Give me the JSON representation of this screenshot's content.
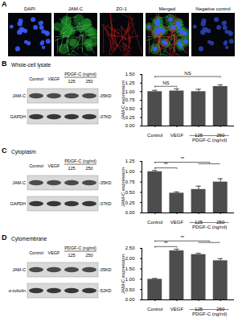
{
  "panel_a": {
    "label": "A",
    "images": [
      "DAPI",
      "JAM-C",
      "ZO-1",
      "Merged",
      "Negative control"
    ]
  },
  "chart_data": [
    {
      "type": "bar",
      "panel": "B",
      "title": "Whole-cell lysate",
      "categories": [
        "Control",
        "VEGF",
        "125",
        "250"
      ],
      "group_label": "PDGF-C (ng/ml)",
      "y_label": "JAM-C expression",
      "values": [
        1.0,
        1.02,
        1.0,
        1.15
      ],
      "errors": [
        0.04,
        0.06,
        0.07,
        0.05
      ],
      "color": "#4d4d4d",
      "ylim": [
        0,
        1.5
      ],
      "yticks": [
        {
          "value": 0,
          "label": "0.00"
        },
        {
          "value": 0.25,
          "label": "0.25"
        },
        {
          "value": 0.5,
          "label": "0.50"
        },
        {
          "value": 0.75,
          "label": "0.75"
        },
        {
          "value": 1,
          "label": "1.00"
        },
        {
          "value": 1.25,
          "label": "1.25"
        },
        {
          "value": 1.5,
          "label": "1.50"
        }
      ],
      "blot": [
        {
          "protein": "JAM-C",
          "size": "-35KD"
        },
        {
          "protein": "GAPDH",
          "size": "-37KD"
        }
      ],
      "annotations": [
        {
          "from": 0,
          "to": 1,
          "text": "NS"
        },
        {
          "from": 0,
          "to": 3,
          "text": "NS"
        }
      ]
    },
    {
      "type": "bar",
      "panel": "C",
      "title": "Cytoplasm",
      "categories": [
        "Control",
        "VEGF",
        "125",
        "250"
      ],
      "group_label": "PDGF-C (ng/ml)",
      "y_label": "JAM-C expression",
      "values": [
        1.0,
        0.48,
        0.57,
        0.75
      ],
      "errors": [
        0.03,
        0.03,
        0.08,
        0.08
      ],
      "color": "#4d4d4d",
      "ylim": [
        0,
        1.25
      ],
      "yticks": [
        {
          "value": 0,
          "label": "0.00"
        },
        {
          "value": 0.25,
          "label": "0.25"
        },
        {
          "value": 0.5,
          "label": "0.50"
        },
        {
          "value": 0.75,
          "label": "0.75"
        },
        {
          "value": 1,
          "label": "1.00"
        },
        {
          "value": 1.25,
          "label": "1.25"
        }
      ],
      "blot": [
        {
          "protein": "JAM-C",
          "size": "-35KD"
        },
        {
          "protein": "GAPDH",
          "size": "-37KD"
        }
      ],
      "annotations": [
        {
          "from": 0,
          "to": 1,
          "text": "**"
        },
        {
          "from": 0,
          "to": [
            2,
            3
          ],
          "text": "**"
        }
      ]
    },
    {
      "type": "bar",
      "panel": "D",
      "title": "Cytomembrane",
      "categories": [
        "Control",
        "VEGF",
        "125",
        "250"
      ],
      "group_label": "PDGF-C (ng/ml)",
      "y_label": "JAM-C expression",
      "values": [
        1.0,
        2.38,
        2.2,
        1.9
      ],
      "errors": [
        0.04,
        0.08,
        0.06,
        0.1
      ],
      "color": "#4d4d4d",
      "ylim": [
        0,
        2.5
      ],
      "yticks": [
        {
          "value": 0,
          "label": "0.00"
        },
        {
          "value": 0.5,
          "label": "0.50"
        },
        {
          "value": 1,
          "label": "1.00"
        },
        {
          "value": 1.5,
          "label": "1.50"
        },
        {
          "value": 2,
          "label": "2.00"
        },
        {
          "value": 2.5,
          "label": "2.50"
        }
      ],
      "blot": [
        {
          "protein": "JAM-C",
          "size": "-35KD"
        },
        {
          "protein": "α-tubulin",
          "size": "-52KD"
        }
      ],
      "annotations": [
        {
          "from": 0,
          "to": 1,
          "text": "**"
        },
        {
          "from": 0,
          "to": [
            2,
            3
          ],
          "text": "**"
        }
      ]
    }
  ]
}
